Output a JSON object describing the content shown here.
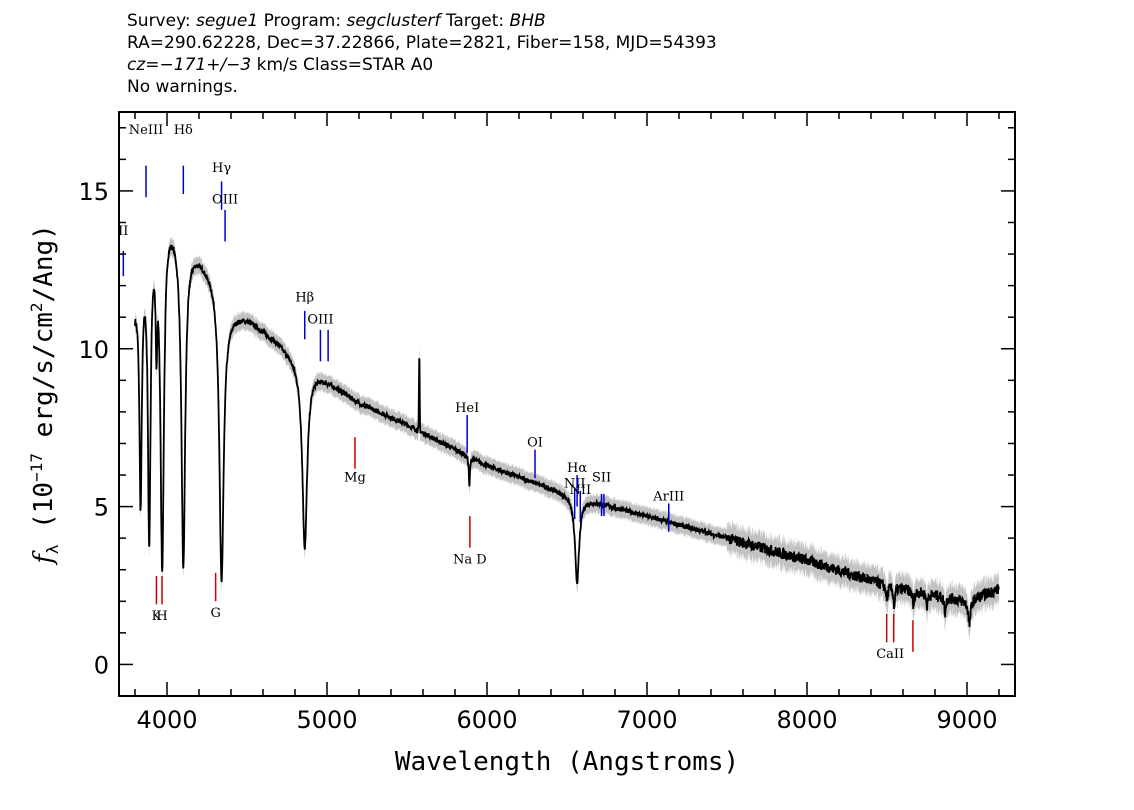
{
  "header": {
    "survey_label": "Survey:",
    "survey": "segue1",
    "program_label": "Program:",
    "program": "segclusterf",
    "target_label": "Target:",
    "target": "BHB",
    "line2": "RA=290.62228, Dec=37.22866, Plate=2821, Fiber=158, MJD=54393",
    "cz_label": "cz=",
    "cz_value": "−171+/−3",
    "cz_rest": " km/s Class=STAR A0",
    "line4": "No warnings."
  },
  "chart_data": {
    "type": "line",
    "xlabel": "Wavelength (Angstroms)",
    "ylabel": "f_λ (10^-17 erg/s/cm^2/Ang)",
    "ylabel_parts": {
      "f": "f",
      "lambda_sub": "λ",
      "open": " (10",
      "exp17": "−17",
      "mid": " erg/s/cm",
      "exp2": "2",
      "close": "/Ang)"
    },
    "xlim": [
      3700,
      9300
    ],
    "ylim": [
      -1,
      17.5
    ],
    "x_ticks": [
      4000,
      5000,
      6000,
      7000,
      8000,
      9000
    ],
    "x_tick_labels": [
      "4000",
      "5000",
      "6000",
      "7000",
      "8000",
      "9000"
    ],
    "y_ticks": [
      0,
      5,
      10,
      15
    ],
    "y_tick_labels": [
      "0",
      "5",
      "10",
      "15"
    ],
    "grid": false,
    "series_color": "#000000",
    "error_color": "#bbbbbb",
    "continuum": [
      [
        3800,
        11.5
      ],
      [
        3900,
        14.0
      ],
      [
        4000,
        14.5
      ],
      [
        4100,
        13.5
      ],
      [
        4200,
        13.0
      ],
      [
        4300,
        12.3
      ],
      [
        4380,
        11.2
      ],
      [
        4500,
        11.0
      ],
      [
        4700,
        10.2
      ],
      [
        4800,
        9.7
      ],
      [
        5000,
        9.0
      ],
      [
        5200,
        8.3
      ],
      [
        5500,
        7.6
      ],
      [
        6000,
        6.3
      ],
      [
        6500,
        5.4
      ],
      [
        7000,
        4.7
      ],
      [
        7500,
        4.0
      ],
      [
        8000,
        3.3
      ],
      [
        8500,
        2.5
      ],
      [
        9000,
        2.0
      ],
      [
        9200,
        2.4
      ]
    ],
    "absorption_lines": [
      {
        "center": 3835,
        "depth": 7.0,
        "width": 9
      },
      {
        "center": 3889,
        "depth": 9.5,
        "width": 10
      },
      {
        "center": 3934,
        "depth": 3.0,
        "width": 6
      },
      {
        "center": 3970,
        "depth": 11.0,
        "width": 13
      },
      {
        "center": 4102,
        "depth": 10.3,
        "width": 14
      },
      {
        "center": 4341,
        "depth": 9.1,
        "width": 16
      },
      {
        "center": 4861,
        "depth": 5.8,
        "width": 18
      },
      {
        "center": 5890,
        "depth": 1.0,
        "width": 4
      },
      {
        "center": 6563,
        "depth": 2.7,
        "width": 16
      },
      {
        "center": 8500,
        "depth": 0.5,
        "width": 6
      },
      {
        "center": 8545,
        "depth": 0.6,
        "width": 6
      },
      {
        "center": 8665,
        "depth": 0.5,
        "width": 6
      },
      {
        "center": 8750,
        "depth": 0.4,
        "width": 6
      },
      {
        "center": 8863,
        "depth": 0.5,
        "width": 6
      },
      {
        "center": 9015,
        "depth": 0.8,
        "width": 8
      }
    ],
    "emission_spikes": [
      {
        "center": 5577,
        "height": 1.2,
        "width": 3
      },
      {
        "center": 5577,
        "height": 1.3,
        "width": 3
      }
    ],
    "emission_lines": [
      {
        "label": "NeIII",
        "wavelength": 3869,
        "color": "#0000cc",
        "y_from": 15.8,
        "y_to": 14.8,
        "label_y": 16.8
      },
      {
        "label": "Hδ",
        "wavelength": 4102,
        "color": "#0000cc",
        "y_from": 15.8,
        "y_to": 14.9,
        "label_y": 16.8
      },
      {
        "label": "Hγ",
        "wavelength": 4341,
        "color": "#0000cc",
        "y_from": 15.3,
        "y_to": 14.4,
        "label_y": 15.6
      },
      {
        "label": "OIII",
        "wavelength": 4363,
        "color": "#0000cc",
        "y_from": 14.4,
        "y_to": 13.4,
        "label_y": 14.6
      },
      {
        "label": "II",
        "wavelength": 3727,
        "color": "#0000cc",
        "y_from": 13.1,
        "y_to": 12.3,
        "label_y": 13.6
      },
      {
        "label": "Hβ",
        "wavelength": 4861,
        "color": "#0000cc",
        "y_from": 11.2,
        "y_to": 10.3,
        "label_y": 11.5
      },
      {
        "label": "OIII",
        "wavelength": 4959,
        "color": "#0000cc",
        "y_from": 10.6,
        "y_to": 9.6,
        "label_y": 10.8
      },
      {
        "label": "",
        "wavelength": 5007,
        "color": "#0000cc",
        "y_from": 10.6,
        "y_to": 9.6,
        "label_y": 10.8
      },
      {
        "label": "HeI",
        "wavelength": 5876,
        "color": "#0000cc",
        "y_from": 7.9,
        "y_to": 6.7,
        "label_y": 8.0
      },
      {
        "label": "OI",
        "wavelength": 6300,
        "color": "#0000cc",
        "y_from": 6.8,
        "y_to": 5.9,
        "label_y": 6.9
      },
      {
        "label": "NII",
        "wavelength": 6548,
        "color": "#0000cc",
        "y_from": 5.6,
        "y_to": 4.6,
        "label_y": 5.6
      },
      {
        "label": "Hα",
        "wavelength": 6563,
        "color": "#0000cc",
        "y_from": 6.0,
        "y_to": 5.0,
        "label_y": 6.1
      },
      {
        "label": "NII",
        "wavelength": 6583,
        "color": "#0000cc",
        "y_from": 5.5,
        "y_to": 4.5,
        "label_y": 5.4
      },
      {
        "label": "SII",
        "wavelength": 6716,
        "color": "#0000cc",
        "y_from": 5.4,
        "y_to": 4.7,
        "label_y": 5.8
      },
      {
        "label": "",
        "wavelength": 6731,
        "color": "#0000cc",
        "y_from": 5.4,
        "y_to": 4.7,
        "label_y": 5.8
      },
      {
        "label": "ArIII",
        "wavelength": 7136,
        "color": "#0000cc",
        "y_from": 5.1,
        "y_to": 4.2,
        "label_y": 5.2
      }
    ],
    "absorption_markers": [
      {
        "label": "K",
        "wavelength": 3934,
        "color": "#cc0000",
        "y_from": 2.8,
        "y_to": 1.9,
        "label_y": 1.4
      },
      {
        "label": "H",
        "wavelength": 3969,
        "color": "#cc0000",
        "y_from": 2.8,
        "y_to": 1.9,
        "label_y": 1.4
      },
      {
        "label": "G",
        "wavelength": 4304,
        "color": "#cc0000",
        "y_from": 2.9,
        "y_to": 2.0,
        "label_y": 1.5
      },
      {
        "label": "Mg",
        "wavelength": 5175,
        "color": "#cc0000",
        "y_from": 7.2,
        "y_to": 6.2,
        "label_y": 5.8
      },
      {
        "label": "Na D",
        "wavelength": 5893,
        "color": "#cc0000",
        "y_from": 4.7,
        "y_to": 3.7,
        "label_y": 3.2
      },
      {
        "label": "",
        "wavelength": 8498,
        "color": "#cc0000",
        "y_from": 1.6,
        "y_to": 0.7,
        "label_y": 0.2
      },
      {
        "label": "",
        "wavelength": 8542,
        "color": "#cc0000",
        "y_from": 1.6,
        "y_to": 0.7,
        "label_y": 0.2
      },
      {
        "label": "CaII",
        "wavelength": 8520,
        "color": "#cc0000",
        "y_from": 1.6,
        "y_to": 0.7,
        "label_y": 0.2,
        "marker": false
      },
      {
        "label": "",
        "wavelength": 8662,
        "color": "#cc0000",
        "y_from": 1.4,
        "y_to": 0.4,
        "label_y": 0.2
      }
    ]
  }
}
